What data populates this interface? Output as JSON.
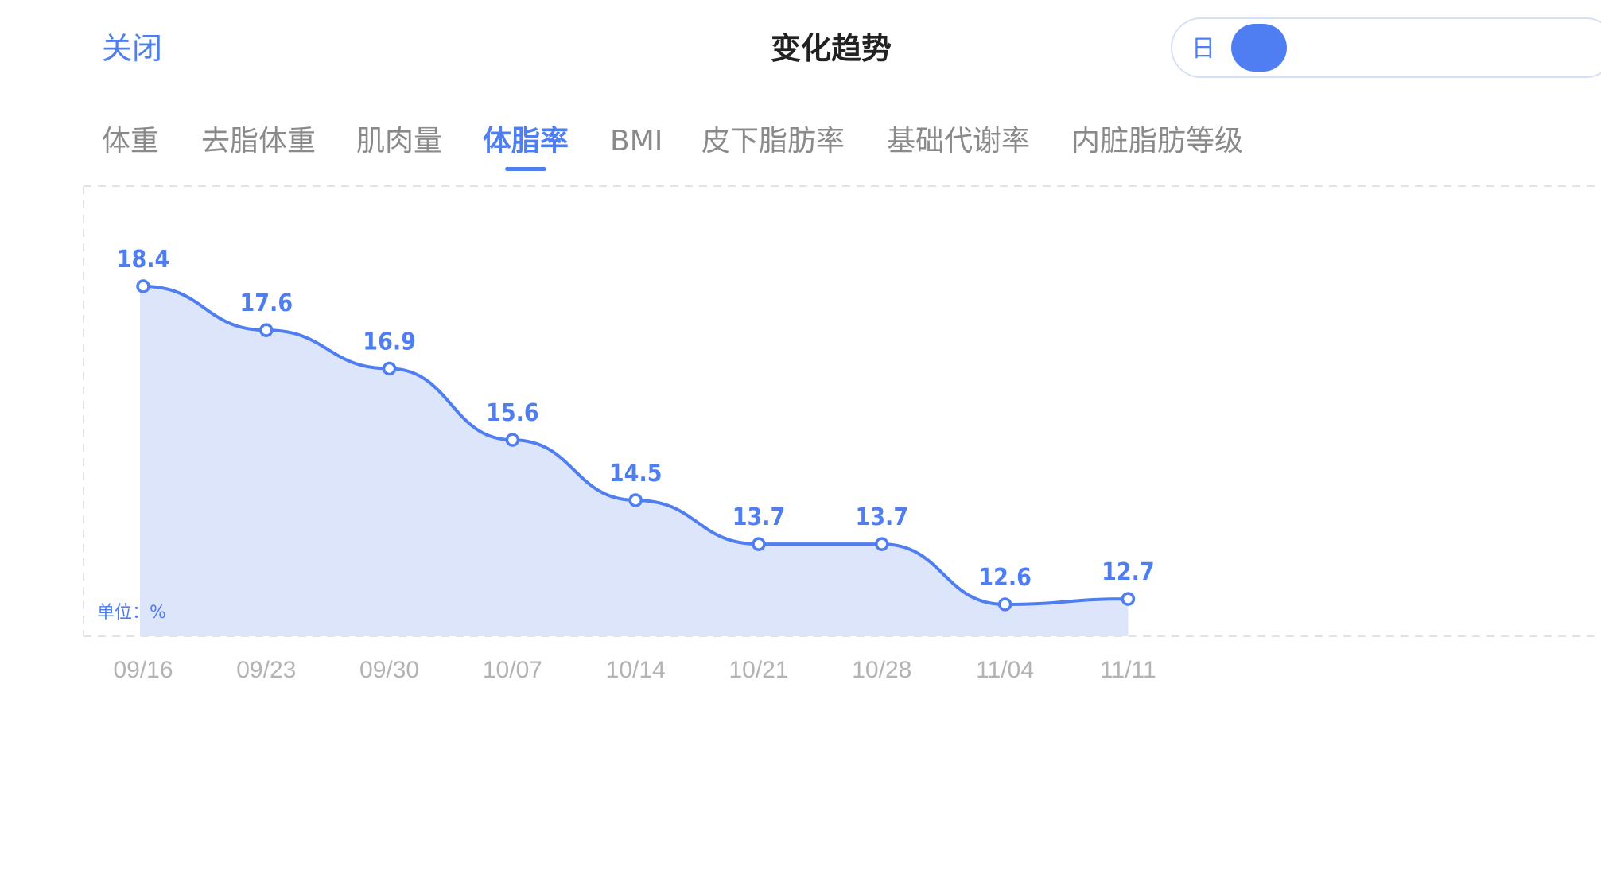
{
  "header": {
    "close_label": "关闭",
    "title": "变化趋势",
    "period_label": "日"
  },
  "tabs": [
    {
      "label": "体重",
      "active": false
    },
    {
      "label": "去脂体重",
      "active": false
    },
    {
      "label": "肌肉量",
      "active": false
    },
    {
      "label": "体脂率",
      "active": true
    },
    {
      "label": "BMI",
      "active": false
    },
    {
      "label": "皮下脂肪率",
      "active": false
    },
    {
      "label": "基础代谢率",
      "active": false
    },
    {
      "label": "内脏脂肪等级",
      "active": false
    }
  ],
  "colors": {
    "accent": "#4f7ef2",
    "fill": "#dde5fb",
    "tab_inactive": "#8a8a8a",
    "axis_text": "#b3b3b3"
  },
  "chart_data": {
    "type": "area",
    "categories": [
      "09/16",
      "09/23",
      "09/30",
      "10/07",
      "10/14",
      "10/21",
      "10/28",
      "11/04",
      "11/11"
    ],
    "values": [
      18.4,
      17.6,
      16.9,
      15.6,
      14.5,
      13.7,
      13.7,
      12.6,
      12.7
    ],
    "unit_label": "单位：%",
    "data_labels": true
  }
}
